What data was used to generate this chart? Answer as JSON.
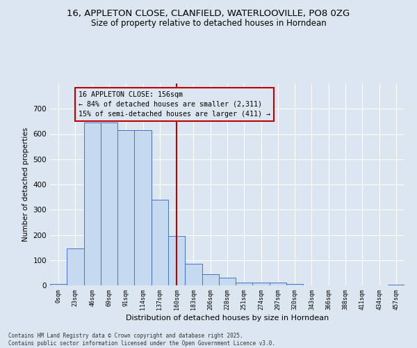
{
  "title_line1": "16, APPLETON CLOSE, CLANFIELD, WATERLOOVILLE, PO8 0ZG",
  "title_line2": "Size of property relative to detached houses in Horndean",
  "xlabel": "Distribution of detached houses by size in Horndean",
  "ylabel": "Number of detached properties",
  "bar_labels": [
    "0sqm",
    "23sqm",
    "46sqm",
    "69sqm",
    "91sqm",
    "114sqm",
    "137sqm",
    "160sqm",
    "183sqm",
    "206sqm",
    "228sqm",
    "251sqm",
    "274sqm",
    "297sqm",
    "320sqm",
    "343sqm",
    "366sqm",
    "388sqm",
    "411sqm",
    "434sqm",
    "457sqm"
  ],
  "bar_values": [
    5,
    145,
    645,
    645,
    615,
    615,
    340,
    195,
    85,
    45,
    30,
    10,
    12,
    12,
    5,
    0,
    0,
    0,
    0,
    0,
    3
  ],
  "bar_color": "#c5d9f1",
  "bar_edgecolor": "#4472c4",
  "vline_color": "#c00000",
  "vline_x": 7.0,
  "annotation_text": "16 APPLETON CLOSE: 156sqm\n← 84% of detached houses are smaller (2,311)\n15% of semi-detached houses are larger (411) →",
  "annotation_box_edgecolor": "#c00000",
  "ylim": [
    0,
    800
  ],
  "yticks": [
    0,
    100,
    200,
    300,
    400,
    500,
    600,
    700
  ],
  "footnote1": "Contains HM Land Registry data © Crown copyright and database right 2025.",
  "footnote2": "Contains public sector information licensed under the Open Government Licence v3.0.",
  "bg_color": "#dce6f1",
  "plot_bg_color": "#dce6f1"
}
